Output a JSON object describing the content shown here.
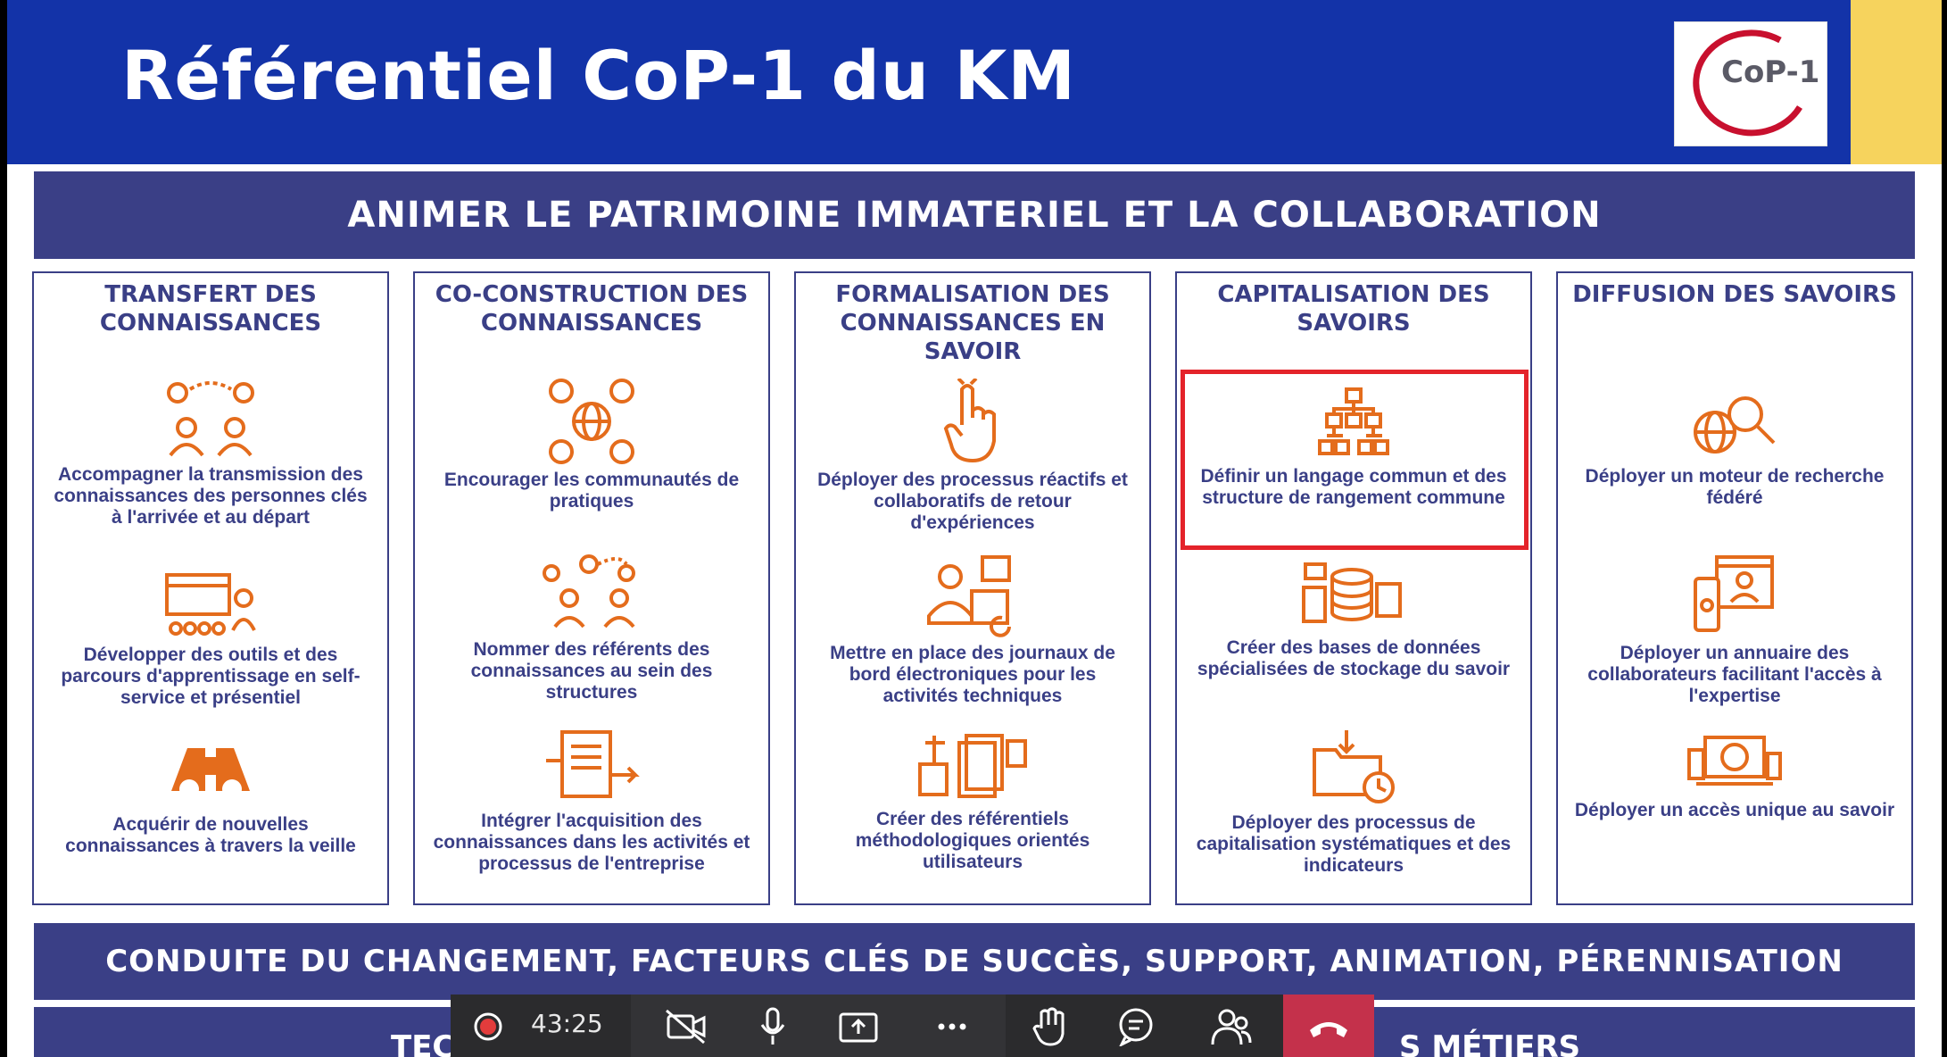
{
  "header": {
    "title": "Référentiel CoP-1 du KM",
    "logo_text": "CoP-1"
  },
  "top_banner": "ANIMER LE PATRIMOINE IMMATERIEL ET LA COLLABORATION",
  "columns": [
    {
      "title": "TRANSFERT DES CONNAISSANCES",
      "items": [
        {
          "icon": "knowledge-transfer-people-icon",
          "text": "Accompagner la transmission des connaissances des personnes clés à l'arrivée et au départ"
        },
        {
          "icon": "training-presentation-icon",
          "text": "Développer des outils et des parcours d'apprentissage en self-service et présentiel"
        },
        {
          "icon": "binoculars-icon",
          "text": "Acquérir de nouvelles connaissances à travers la veille"
        }
      ]
    },
    {
      "title": "CO-CONSTRUCTION DES CONNAISSANCES",
      "items": [
        {
          "icon": "global-community-icon",
          "text": "Encourager les communautés de pratiques"
        },
        {
          "icon": "referents-network-icon",
          "text": "Nommer des référents des connaissances au sein des structures"
        },
        {
          "icon": "document-integration-icon",
          "text": "Intégrer l'acquisition des connaissances dans les activités et processus de l'entreprise"
        }
      ]
    },
    {
      "title": "FORMALISATION DES CONNAISSANCES EN SAVOIR",
      "items": [
        {
          "icon": "hand-reminder-icon",
          "text": "Déployer des processus réactifs et collaboratifs de retour d'expériences"
        },
        {
          "icon": "logbook-icon",
          "text": "Mettre en place des journaux de bord électroniques pour les activités techniques"
        },
        {
          "icon": "reference-documents-icon",
          "text": "Créer des référentiels méthodologiques orientés utilisateurs"
        }
      ]
    },
    {
      "title": "CAPITALISATION DES SAVOIRS",
      "items": [
        {
          "icon": "hierarchy-structure-icon",
          "text": "Définir un langage commun et des structure de rangement commune"
        },
        {
          "icon": "database-icon",
          "text": "Créer des bases de données spécialisées de stockage du savoir"
        },
        {
          "icon": "folder-clock-icon",
          "text": "Déployer des processus de capitalisation systématiques et des indicateurs"
        }
      ]
    },
    {
      "title": "DIFFUSION DES SAVOIRS",
      "items": [
        {
          "icon": "globe-search-icon",
          "text": "Déployer un moteur de recherche fédéré"
        },
        {
          "icon": "directory-profile-icon",
          "text": "Déployer un annuaire des collaborateurs facilitant l'accès à l'expertise"
        },
        {
          "icon": "devices-access-icon",
          "text": "Déployer un accès unique au savoir"
        }
      ]
    }
  ],
  "bottom_banner": "CONDUITE DU CHANGEMENT, FACTEURS CLÉS DE SUCCÈS, SUPPORT, ANIMATION, PÉRENNISATION",
  "tech_banner": {
    "left_visible": "TEC",
    "right_visible": "S MÉTIERS"
  },
  "toolbar": {
    "timer": "43:25",
    "buttons": [
      "record-icon",
      "camera-off-icon",
      "microphone-icon",
      "share-screen-icon",
      "more-icon",
      "raise-hand-icon",
      "chat-icon",
      "participants-icon",
      "hang-up-icon"
    ]
  },
  "colors": {
    "title_bar": "#1333a8",
    "banner": "#3a3f86",
    "icon_orange": "#e46c1c",
    "highlight": "#e4232a",
    "yellow": "#f6d35d"
  }
}
